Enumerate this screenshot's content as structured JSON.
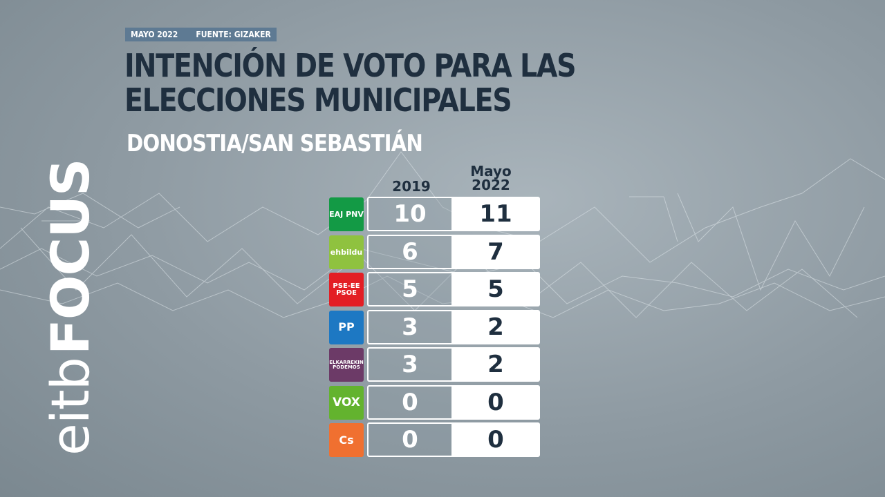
{
  "brand": {
    "part1": "eitb",
    "part2": "FOCUS"
  },
  "meta": {
    "date": "MAYO 2022",
    "source": "FUENTE: GIZAKER"
  },
  "title": "INTENCIÓN DE VOTO PARA LAS ELECCIONES MUNICIPALES",
  "subtitle": "DONOSTIA/SAN SEBASTIÁN",
  "columns": {
    "c2019": "2019",
    "c2022_line1": "Mayo",
    "c2022_line2": "2022"
  },
  "chart_data": {
    "type": "table",
    "title": "INTENCIÓN DE VOTO PARA LAS ELECCIONES MUNICIPALES",
    "subtitle": "DONOSTIA/SAN SEBASTIÁN",
    "columns": [
      "2019",
      "Mayo 2022"
    ],
    "rows": [
      {
        "logo_text": "EAJ PNV",
        "logo_color": "#139a45",
        "values": [
          10,
          11
        ]
      },
      {
        "logo_text": "ehbildu",
        "logo_color": "#8fc23f",
        "values": [
          6,
          7
        ]
      },
      {
        "logo_text": "PSE-EE PSOE",
        "logo_color": "#e31e24",
        "values": [
          5,
          5
        ]
      },
      {
        "logo_text": "PP",
        "logo_color": "#1d78c3",
        "values": [
          3,
          2
        ]
      },
      {
        "logo_text": "ELKARREKIN PODEMOS",
        "logo_color": "#6c3a67",
        "values": [
          3,
          2
        ]
      },
      {
        "logo_text": "VOX",
        "logo_color": "#63b32e",
        "values": [
          0,
          0
        ]
      },
      {
        "logo_text": "Cs",
        "logo_color": "#f07030",
        "values": [
          0,
          0
        ]
      }
    ]
  },
  "colors": {
    "title": "#1f2f3f",
    "meta_bg": "#5e7a93"
  }
}
